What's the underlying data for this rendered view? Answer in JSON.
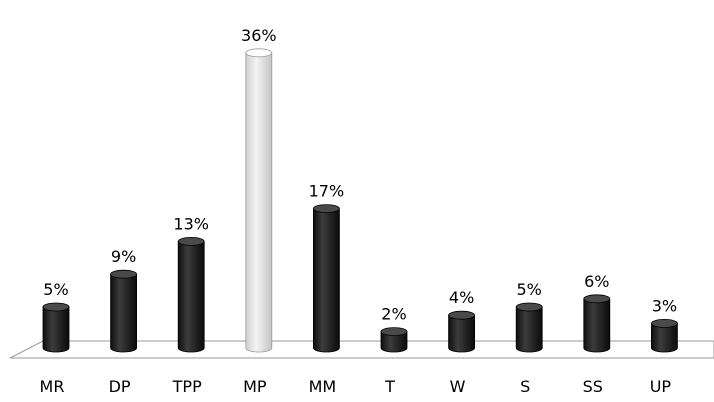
{
  "chart_data": {
    "type": "bar",
    "style": "3d-cylinder",
    "categories": [
      "MR",
      "DP",
      "TPP",
      "MP",
      "MM",
      "T",
      "W",
      "S",
      "SS",
      "UP"
    ],
    "values": [
      5,
      9,
      13,
      36,
      17,
      2,
      4,
      5,
      6,
      3
    ],
    "data_labels": [
      "5%",
      "9%",
      "13%",
      "36%",
      "17%",
      "2%",
      "4%",
      "5%",
      "6%",
      "3%"
    ],
    "unit": "%",
    "highlighted_category": "MP",
    "ylim": [
      0,
      36
    ],
    "grid": false,
    "legend": "none",
    "colors": {
      "bar": "#262626",
      "bar_highlight": "#e6e6e6",
      "floor_stroke": "#9a9a9a"
    }
  }
}
